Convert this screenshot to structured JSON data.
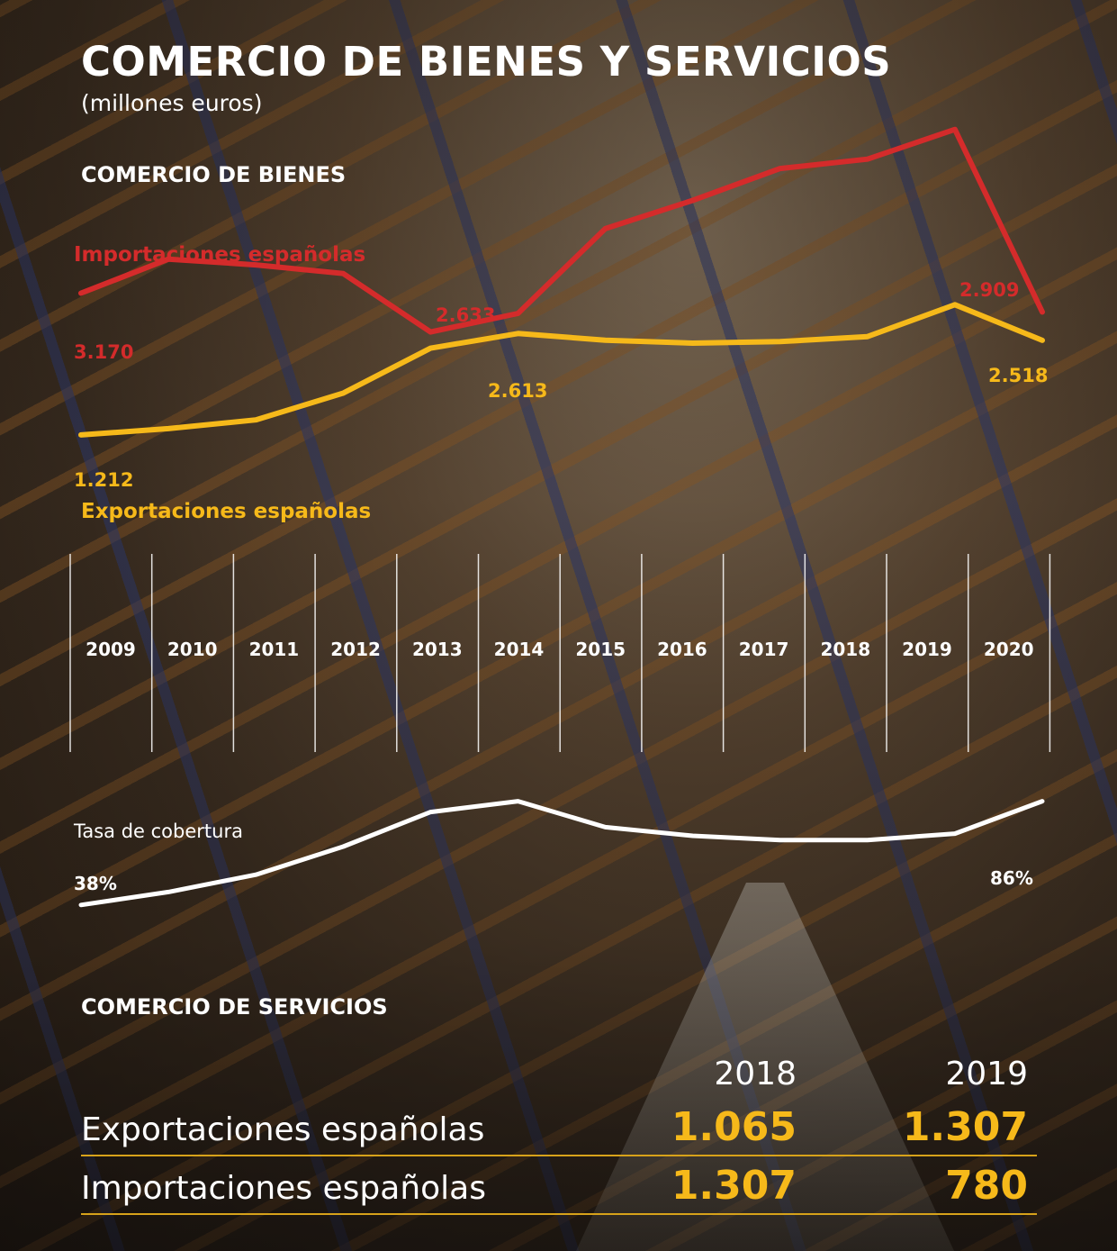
{
  "title": "COMERCIO DE BIENES Y SERVICIOS",
  "subtitle": "(millones euros)",
  "sections": {
    "bienes": "COMERCIO DE BIENES",
    "servicios": "COMERCIO DE SERVICIOS"
  },
  "colors": {
    "imports": "#d42b2b",
    "exports": "#f6b91a",
    "coverage": "#ffffff",
    "accent": "#f6b91a"
  },
  "chart_data": [
    {
      "type": "line",
      "categories": [
        "2009",
        "2010",
        "2011",
        "2012",
        "2013",
        "2014",
        "2015",
        "2016",
        "2017",
        "2018",
        "2019",
        "2020"
      ],
      "series": [
        {
          "name": "Importaciones españolas",
          "values": [
            3170,
            3640,
            3560,
            3440,
            2633,
            2890,
            4060,
            4450,
            4890,
            5020,
            5430,
            2909
          ],
          "point_labels": [
            {
              "index": 0,
              "text": "3.170"
            },
            {
              "index": 4,
              "text": "2.633"
            },
            {
              "index": 11,
              "text": "2.909"
            }
          ]
        },
        {
          "name": "Exportaciones españolas",
          "values": [
            1212,
            1300,
            1420,
            1790,
            2410,
            2613,
            2520,
            2480,
            2500,
            2570,
            3010,
            2518
          ],
          "point_labels": [
            {
              "index": 0,
              "text": "1.212"
            },
            {
              "index": 5,
              "text": "2.613"
            },
            {
              "index": 11,
              "text": "2.518"
            }
          ]
        }
      ],
      "ylim": [
        1000,
        5600
      ],
      "grid": false
    },
    {
      "type": "line",
      "categories": [
        "2009",
        "2010",
        "2011",
        "2012",
        "2013",
        "2014",
        "2015",
        "2016",
        "2017",
        "2018",
        "2019",
        "2020"
      ],
      "series": [
        {
          "name": "Tasa de cobertura",
          "values": [
            38,
            44,
            52,
            65,
            81,
            86,
            74,
            70,
            68,
            68,
            71,
            86
          ],
          "point_labels": [
            {
              "index": 0,
              "text": "38%"
            },
            {
              "index": 11,
              "text": "86%"
            }
          ]
        }
      ],
      "ylim": [
        35,
        90
      ],
      "grid": false
    },
    {
      "type": "table",
      "title": "COMERCIO DE SERVICIOS",
      "columns": [
        "2018",
        "2019"
      ],
      "rows": [
        {
          "label": "Exportaciones españolas",
          "values": [
            "1.065",
            "1.307"
          ]
        },
        {
          "label": "Importaciones españolas",
          "values": [
            "1.307",
            "780"
          ]
        }
      ]
    }
  ]
}
